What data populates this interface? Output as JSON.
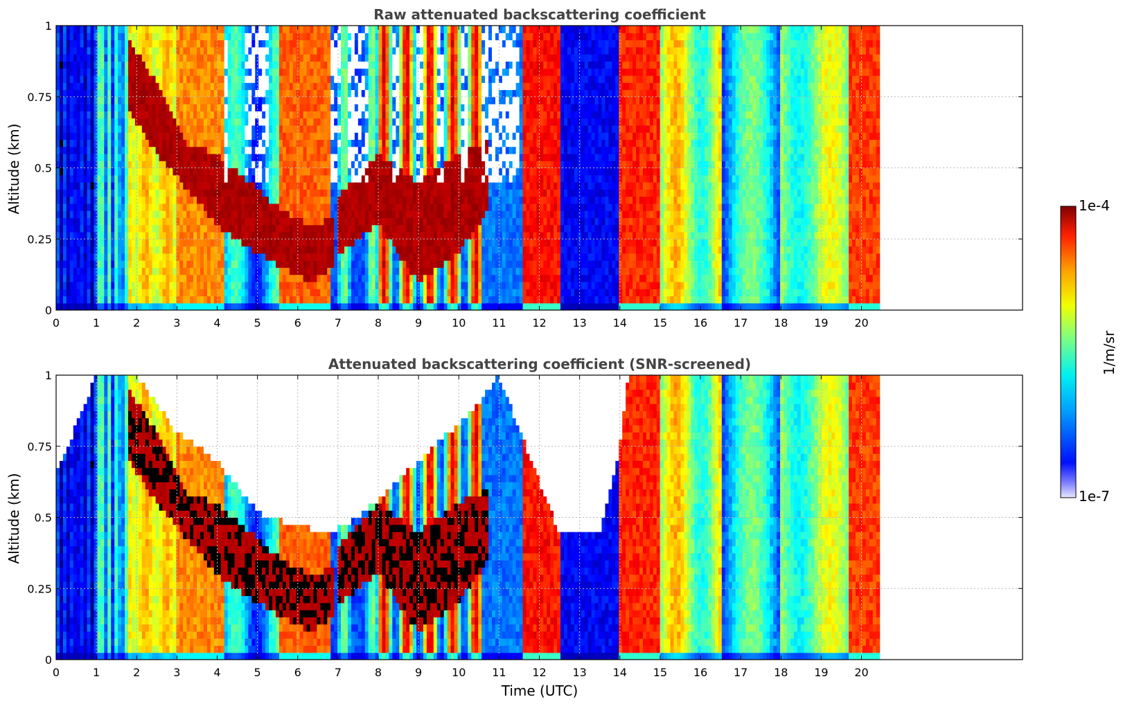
{
  "chart_data": [
    {
      "type": "heatmap",
      "title": "Raw attenuated backscattering coefficient",
      "ylabel": "Altitude (km)",
      "xlabel": "",
      "xlim": [
        0,
        24
      ],
      "ylim": [
        0,
        1
      ],
      "x_ticks": [
        0,
        1,
        2,
        3,
        4,
        5,
        6,
        7,
        8,
        9,
        10,
        11,
        12,
        13,
        14,
        15,
        16,
        17,
        18,
        19,
        20
      ],
      "y_ticks": [
        0,
        0.25,
        0.5,
        0.75,
        1
      ],
      "grid": true,
      "data_extent_x": [
        0,
        20.45
      ],
      "layers": [
        {
          "x": [
            1.8,
            2.5,
            3.3,
            4.0,
            4.8,
            5.6,
            6.3,
            6.9
          ],
          "top": [
            0.95,
            0.8,
            0.58,
            0.55,
            0.45,
            0.35,
            0.3,
            0.32
          ],
          "bottom": [
            0.7,
            0.55,
            0.42,
            0.3,
            0.22,
            0.15,
            0.1,
            0.15
          ]
        },
        {
          "x": [
            7.0,
            8.0,
            9.0,
            10.0,
            10.7
          ],
          "top": [
            0.4,
            0.55,
            0.45,
            0.55,
            0.6
          ],
          "bottom": [
            0.2,
            0.3,
            0.1,
            0.2,
            0.35
          ]
        }
      ]
    },
    {
      "type": "heatmap",
      "title": "Attenuated backscattering coefficient (SNR-screened)",
      "ylabel": "Altitude (km)",
      "xlabel": "Time (UTC)",
      "xlim": [
        0,
        24
      ],
      "ylim": [
        0,
        1
      ],
      "x_ticks": [
        0,
        1,
        2,
        3,
        4,
        5,
        6,
        7,
        8,
        9,
        10,
        11,
        12,
        13,
        14,
        15,
        16,
        17,
        18,
        19,
        20
      ],
      "y_ticks": [
        0,
        0.25,
        0.5,
        0.75,
        1
      ],
      "grid": true,
      "data_extent_x": [
        0,
        20.45
      ],
      "screen_top": {
        "x": [
          0.0,
          1.0,
          2.0,
          3.0,
          4.0,
          5.0,
          6.0,
          6.8,
          7.5,
          9.0,
          10.5,
          11.0,
          12.5,
          13.5,
          14.0,
          14.2
        ],
        "y": [
          0.65,
          1.0,
          1.0,
          0.8,
          0.7,
          0.52,
          0.47,
          0.45,
          0.5,
          0.7,
          0.9,
          1.0,
          0.45,
          0.45,
          0.75,
          1.0
        ]
      }
    }
  ],
  "colorbar": {
    "label": "1/m/sr",
    "max_label": "1e-4",
    "min_label": "1e-7",
    "colormap": "jet",
    "scale": "log"
  }
}
